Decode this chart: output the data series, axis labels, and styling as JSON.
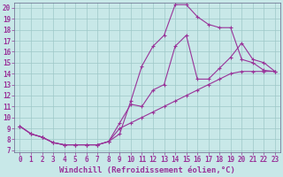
{
  "xlabel": "Windchill (Refroidissement éolien,°C)",
  "bg_color": "#c8e8e8",
  "line_color": "#993399",
  "xlim": [
    -0.5,
    23.5
  ],
  "ylim": [
    6.8,
    20.5
  ],
  "xticks": [
    0,
    1,
    2,
    3,
    4,
    5,
    6,
    7,
    8,
    9,
    10,
    11,
    12,
    13,
    14,
    15,
    16,
    17,
    18,
    19,
    20,
    21,
    22,
    23
  ],
  "yticks": [
    7,
    8,
    9,
    10,
    11,
    12,
    13,
    14,
    15,
    16,
    17,
    18,
    19,
    20
  ],
  "line1_x": [
    0,
    1,
    2,
    3,
    4,
    5,
    6,
    7,
    8,
    9,
    10,
    11,
    12,
    13,
    14,
    15,
    16,
    17,
    18,
    19,
    20,
    21,
    22,
    23
  ],
  "line1_y": [
    9.2,
    8.5,
    8.2,
    7.7,
    7.5,
    7.5,
    7.5,
    7.5,
    7.8,
    8.5,
    11.5,
    14.7,
    16.5,
    17.5,
    20.3,
    20.3,
    19.2,
    18.5,
    18.2,
    18.2,
    15.3,
    15.0,
    14.3,
    14.2
  ],
  "line2_x": [
    0,
    1,
    2,
    3,
    4,
    5,
    6,
    7,
    8,
    9,
    10,
    11,
    12,
    13,
    14,
    15,
    16,
    17,
    18,
    19,
    20,
    21,
    22,
    23
  ],
  "line2_y": [
    9.2,
    8.5,
    8.2,
    7.7,
    7.5,
    7.5,
    7.5,
    7.5,
    7.8,
    9.5,
    11.2,
    11.0,
    12.5,
    13.0,
    16.5,
    17.5,
    13.5,
    13.5,
    14.5,
    15.5,
    16.8,
    15.3,
    15.0,
    14.2
  ],
  "line3_x": [
    0,
    1,
    2,
    3,
    4,
    5,
    6,
    7,
    8,
    9,
    10,
    11,
    12,
    13,
    14,
    15,
    16,
    17,
    18,
    19,
    20,
    21,
    22,
    23
  ],
  "line3_y": [
    9.2,
    8.5,
    8.2,
    7.7,
    7.5,
    7.5,
    7.5,
    7.5,
    7.8,
    9.0,
    9.5,
    10.0,
    10.5,
    11.0,
    11.5,
    12.0,
    12.5,
    13.0,
    13.5,
    14.0,
    14.2,
    14.2,
    14.2,
    14.2
  ],
  "grid_color": "#9ec8c8",
  "xlabel_fontsize": 6.5,
  "ytick_fontsize": 5.5,
  "xtick_fontsize": 5.5
}
